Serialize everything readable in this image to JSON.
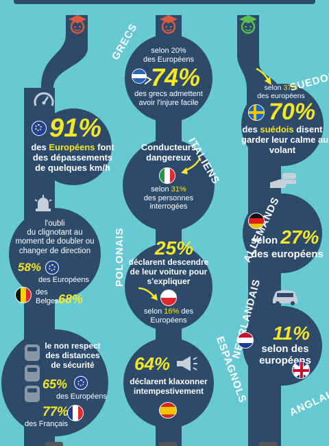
{
  "columns": {
    "left": {
      "block1": {
        "stat": "91%",
        "text_pre": "des ",
        "text_hl": "Européens",
        "text_post": " font",
        "line2": "des dépassements",
        "line3": "de quelques km/h"
      },
      "block2": {
        "line1": "l'oubli",
        "line2": "du clignotant au",
        "line3": "moment de doubler ou",
        "line4": "changer de direction",
        "stat_eu": "58%",
        "stat_eu_label": "des Européens",
        "label_be1": "des",
        "label_be2": "Belges",
        "stat_be": "68%"
      },
      "block3": {
        "line1": "le non respect",
        "line2": "des distances",
        "line3": "de sécurité",
        "stat_eu": "65%",
        "stat_eu_label": "des Européens",
        "stat_fr": "77%",
        "stat_fr_label": "des Français"
      }
    },
    "middle": {
      "label_grecs": "GRECS",
      "grecs": {
        "source": "selon 20%",
        "source2": "des Européens",
        "stat": "74%",
        "line1": "des grecs admettent",
        "line2": "avoir l'injure facile"
      },
      "label_italiens": "ITALIENS",
      "italiens": {
        "line1": "Conducteurs",
        "line2": "dangereux",
        "source_pre": "selon ",
        "source_pct": "31%",
        "line3": "des personnes",
        "line4": "interrogées"
      },
      "label_polonais": "POLONAIS",
      "polonais": {
        "stat": "25%",
        "line1": "déclarent descendre",
        "line2": "de leur voiture pour",
        "line3": "s'expliquer",
        "source_pre": "selon ",
        "source_pct": "16%",
        "source_post": " des",
        "source2": "Européens"
      },
      "label_espagnols": "ESPAGNOLS",
      "espagnols": {
        "stat": "64%",
        "line1": "déclarent klaxonner",
        "line2": "intempestivement"
      }
    },
    "right": {
      "label_suedois": "SUEDOIS",
      "suedois": {
        "source_pre": "selon ",
        "source_pct": "37%",
        "source2": "des européens",
        "stat": "70%",
        "line1_pre": "des ",
        "line1_hl": "suédois",
        "line1_post": " disent",
        "line2": "garder leur calme au",
        "line3": "volant"
      },
      "label_allemands": "ALLEMANDS",
      "allemands": {
        "line1": "selon",
        "stat": "27%",
        "line2": "des européens"
      },
      "label_neerlandais": "NEERLANDAIS",
      "neerlandais": {
        "stat": "11%",
        "line1": "selon des",
        "line2": "européens"
      },
      "label_anglais": "ANGLAIS"
    }
  },
  "colors": {
    "background": "#66c9d3",
    "road": "#2d4a6b",
    "highlight": "#f5e628",
    "head_red": "#d85a3f",
    "head_green": "#5cc24f"
  },
  "icons": [
    "graduate-head-icon",
    "speedometer-icon",
    "turn-signal-icon",
    "car-jam-icon",
    "megaphone-icon",
    "hand-car-icon",
    "car-icon",
    "arrow-icon"
  ]
}
